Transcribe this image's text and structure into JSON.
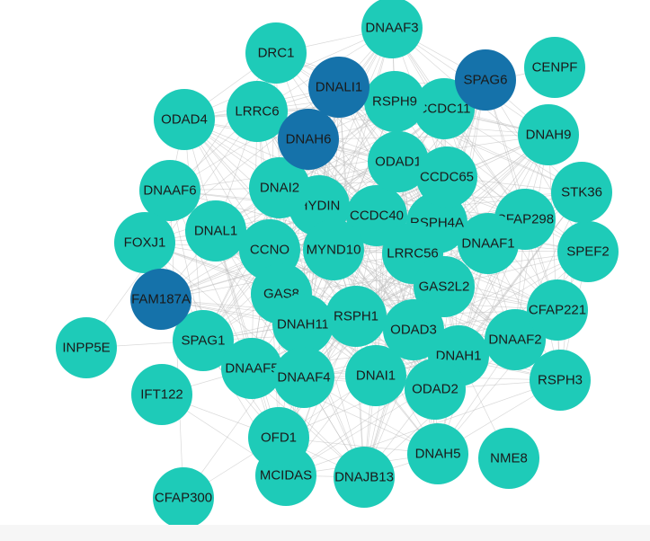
{
  "colors": {
    "default_node": "#1ecbb8",
    "highlight_node": "#1572aa",
    "edge": "#b9b9b9",
    "label": "#1a1a1a"
  },
  "nodes": [
    {
      "id": "DNAAF3",
      "highlight": false
    },
    {
      "id": "DRC1",
      "highlight": false
    },
    {
      "id": "DNALI1",
      "highlight": true
    },
    {
      "id": "SPAG6",
      "highlight": true
    },
    {
      "id": "CENPF",
      "highlight": false
    },
    {
      "id": "RSPH9",
      "highlight": false
    },
    {
      "id": "CCDC11",
      "highlight": false
    },
    {
      "id": "ODAD4",
      "highlight": false
    },
    {
      "id": "LRRC6",
      "highlight": false
    },
    {
      "id": "DNAH6",
      "highlight": true
    },
    {
      "id": "DNAH9",
      "highlight": false
    },
    {
      "id": "ODAD1",
      "highlight": false
    },
    {
      "id": "CCDC65",
      "highlight": false
    },
    {
      "id": "DNAAF6",
      "highlight": false
    },
    {
      "id": "DNAI2",
      "highlight": false
    },
    {
      "id": "HYDIN",
      "highlight": false
    },
    {
      "id": "CCDC40",
      "highlight": false
    },
    {
      "id": "RSPH4A",
      "highlight": false
    },
    {
      "id": "CFAP298",
      "highlight": false
    },
    {
      "id": "STK36",
      "highlight": false
    },
    {
      "id": "FOXJ1",
      "highlight": false
    },
    {
      "id": "DNAL1",
      "highlight": false
    },
    {
      "id": "CCNO",
      "highlight": false
    },
    {
      "id": "MYND10",
      "highlight": false
    },
    {
      "id": "LRRC56",
      "highlight": false
    },
    {
      "id": "DNAAF1",
      "highlight": false
    },
    {
      "id": "SPEF2",
      "highlight": false
    },
    {
      "id": "FAM187A",
      "highlight": true
    },
    {
      "id": "GAS8",
      "highlight": false
    },
    {
      "id": "GAS2L2",
      "highlight": false
    },
    {
      "id": "CFAP221",
      "highlight": false
    },
    {
      "id": "DNAH11",
      "highlight": false
    },
    {
      "id": "RSPH1",
      "highlight": false
    },
    {
      "id": "ODAD3",
      "highlight": false
    },
    {
      "id": "DNAAF2",
      "highlight": false
    },
    {
      "id": "INPP5E",
      "highlight": false
    },
    {
      "id": "SPAG1",
      "highlight": false
    },
    {
      "id": "DNAH1",
      "highlight": false
    },
    {
      "id": "DNAAF5",
      "highlight": false
    },
    {
      "id": "DNAAF4",
      "highlight": false
    },
    {
      "id": "DNAI1",
      "highlight": false
    },
    {
      "id": "RSPH3",
      "highlight": false
    },
    {
      "id": "IFT122",
      "highlight": false
    },
    {
      "id": "ODAD2",
      "highlight": false
    },
    {
      "id": "OFD1",
      "highlight": false
    },
    {
      "id": "DNAH5",
      "highlight": false
    },
    {
      "id": "NME8",
      "highlight": false
    },
    {
      "id": "MCIDAS",
      "highlight": false
    },
    {
      "id": "DNAJB13",
      "highlight": false
    },
    {
      "id": "CFAP300",
      "highlight": false
    }
  ],
  "labels": {
    "DNAAF3": "DNAAF3",
    "DRC1": "DRC1",
    "DNALI1": "DNALI1",
    "SPAG6": "SPAG6",
    "CENPF": "CENPF",
    "RSPH9": "RSPH9",
    "CCDC11": "CCDC11",
    "ODAD4": "ODAD4",
    "LRRC6": "LRRC6",
    "DNAH6": "DNAH6",
    "DNAH9": "DNAH9",
    "ODAD1": "ODAD1",
    "CCDC65": "CCDC65",
    "DNAAF6": "DNAAF6",
    "DNAI2": "DNAI2",
    "HYDIN": "HYDIN",
    "CCDC40": "CCDC40",
    "RSPH4A": "RSPH4A",
    "CFAP298": "CFAP298",
    "STK36": "STK36",
    "FOXJ1": "FOXJ1",
    "DNAL1": "DNAL1",
    "CCNO": "CCNO",
    "MYND10": "MYND10",
    "LRRC56": "LRRC56",
    "DNAAF1": "DNAAF1",
    "SPEF2": "SPEF2",
    "FAM187A": "FAM187A",
    "GAS8": "GAS8",
    "GAS2L2": "GAS2L2",
    "CFAP221": "CFAP221",
    "DNAH11": "DNAH11",
    "RSPH1": "RSPH1",
    "ODAD3": "ODAD3",
    "DNAAF2": "DNAAF2",
    "INPP5E": "INPP5E",
    "SPAG1": "SPAG1",
    "DNAH1": "DNAH1",
    "DNAAF5": "DNAAF5",
    "DNAAF4": "DNAAF4",
    "DNAI1": "DNAI1",
    "RSPH3": "RSPH3",
    "IFT122": "IFT122",
    "ODAD2": "ODAD2",
    "OFD1": "OFD1",
    "DNAH5": "DNAH5",
    "NME8": "NME8",
    "MCIDAS": "MCIDAS",
    "DNAJB13": "DNAJB13",
    "CFAP300": "CFAP300"
  }
}
